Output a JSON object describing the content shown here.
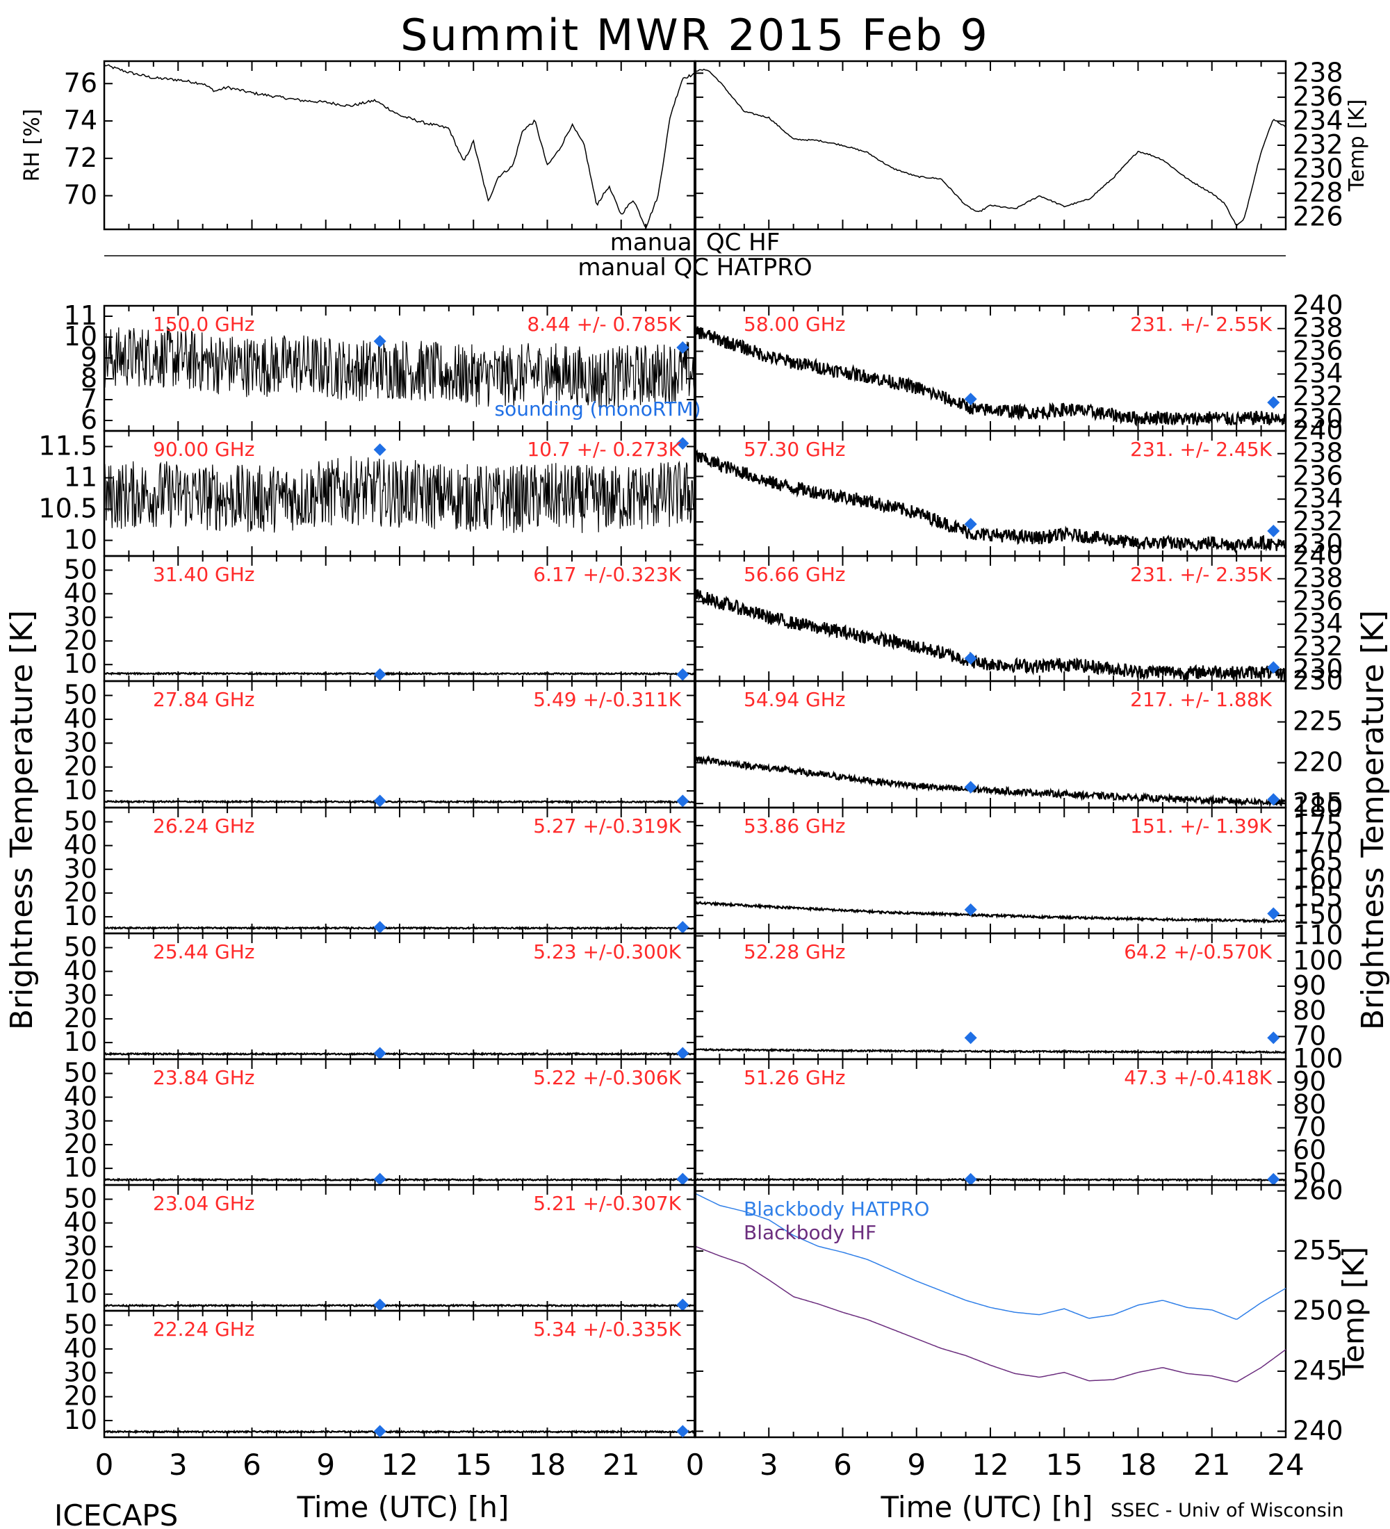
{
  "title": "Summit MWR 2015 Feb  9",
  "footer": {
    "left": "ICECAPS",
    "right": "SSEC - Univ of Wisconsin"
  },
  "xlabel": "Time (UTC) [h]",
  "ylabel_center": "Brightness Temperature [K]",
  "colors": {
    "data": "#000000",
    "label": "#ff2a2a",
    "sounding": "#1f6fe5",
    "bb_hatpro": "#2f7fe8",
    "bb_hf": "#6b2d7e"
  },
  "qc": {
    "hf": "manual QC HF",
    "hatpro": "manual QC HATPRO"
  },
  "chart_data": [
    {
      "id": "rh",
      "type": "line",
      "ylabel": "RH [%]",
      "ylim": [
        68.2,
        77.2
      ],
      "yticks": [
        70,
        72,
        74,
        76
      ],
      "xlim": [
        0,
        24
      ],
      "x": [
        0,
        1,
        2,
        3,
        4,
        4.5,
        5,
        6,
        7,
        8,
        9,
        10,
        11,
        12,
        13,
        14,
        14.6,
        15,
        15.6,
        16,
        16.6,
        17,
        17.5,
        18,
        18.5,
        19,
        19.5,
        20,
        20.5,
        21,
        21.5,
        22,
        22.5,
        23,
        23.5,
        24
      ],
      "y": [
        77.0,
        76.6,
        76.3,
        76.2,
        76.0,
        75.6,
        75.8,
        75.5,
        75.3,
        75.1,
        75.0,
        74.8,
        75.1,
        74.3,
        73.9,
        73.6,
        71.8,
        72.9,
        69.7,
        71.0,
        71.6,
        73.5,
        74.0,
        71.6,
        72.5,
        73.8,
        72.7,
        69.5,
        70.5,
        69.0,
        69.8,
        68.3,
        70.0,
        74.3,
        76.3,
        76.5
      ]
    },
    {
      "id": "temp",
      "type": "line",
      "ylabel": "Temp [K]",
      "ylim": [
        225.0,
        239.0
      ],
      "yticks": [
        226,
        228,
        230,
        232,
        234,
        236,
        238
      ],
      "xlim": [
        0,
        24
      ],
      "x": [
        0,
        0.5,
        1,
        2,
        3,
        4,
        5,
        6,
        7,
        8,
        9,
        10,
        11,
        11.5,
        12,
        13,
        14,
        15,
        16,
        17,
        18,
        18.5,
        19,
        20,
        21,
        21.5,
        22,
        22.3,
        23,
        23.5,
        24
      ],
      "y": [
        238.2,
        238.3,
        237.3,
        234.8,
        234.3,
        232.5,
        232.4,
        232.0,
        231.4,
        230.1,
        229.4,
        229.2,
        227.0,
        226.4,
        227.0,
        226.7,
        227.8,
        226.9,
        227.5,
        229.3,
        231.5,
        231.2,
        230.8,
        229.2,
        228.0,
        227.2,
        225.3,
        225.8,
        231.5,
        234.2,
        233.5
      ]
    },
    {
      "id": "150",
      "type": "line",
      "label": "150.0 GHz",
      "stat": "8.44 +/- 0.785K",
      "ylim": [
        5.5,
        11.5
      ],
      "yticks": [
        6,
        7,
        8,
        9,
        10,
        11
      ],
      "xlim": [
        0,
        24
      ],
      "x": [
        0,
        2,
        4,
        6,
        8,
        10,
        12,
        14,
        16,
        18,
        20,
        22,
        24
      ],
      "y": [
        9.0,
        9.1,
        8.8,
        8.6,
        8.7,
        8.4,
        8.5,
        8.2,
        8.1,
        8.3,
        8.0,
        8.2,
        8.4
      ],
      "spread": 1.5,
      "sounding": {
        "name": "sounding (monoRTM)",
        "x": [
          11.2,
          23.5
        ],
        "y": [
          9.8,
          9.5
        ]
      }
    },
    {
      "id": "90",
      "type": "line",
      "label": "90.00 GHz",
      "stat": "10.7 +/- 0.273K",
      "ylim": [
        9.75,
        11.75
      ],
      "yticks": [
        10.0,
        10.5,
        11.0,
        11.5
      ],
      "xlim": [
        0,
        24
      ],
      "x": [
        0,
        2,
        4,
        6,
        8,
        10,
        12,
        14,
        16,
        18,
        20,
        22,
        24
      ],
      "y": [
        10.7,
        10.75,
        10.7,
        10.65,
        10.7,
        10.8,
        10.75,
        10.7,
        10.65,
        10.7,
        10.65,
        10.7,
        10.75
      ],
      "spread": 0.55,
      "sounding": {
        "x": [
          11.2,
          23.5
        ],
        "y": [
          11.45,
          11.55
        ]
      }
    },
    {
      "id": "31.40",
      "type": "line",
      "label": "31.40 GHz",
      "stat": "6.17 +/-0.323K",
      "ylim": [
        3,
        56
      ],
      "yticks": [
        10,
        20,
        30,
        40,
        50
      ],
      "xlim": [
        0,
        24
      ],
      "x": [
        0,
        24
      ],
      "y": [
        6.2,
        6.1
      ],
      "spread": 0.3,
      "sounding": {
        "x": [
          11.2,
          23.5
        ],
        "y": [
          5.8,
          5.8
        ]
      }
    },
    {
      "id": "27.84",
      "type": "line",
      "label": "27.84 GHz",
      "stat": "5.49 +/-0.311K",
      "ylim": [
        3,
        56
      ],
      "yticks": [
        10,
        20,
        30,
        40,
        50
      ],
      "xlim": [
        0,
        24
      ],
      "x": [
        0,
        24
      ],
      "y": [
        5.5,
        5.4
      ],
      "spread": 0.3,
      "sounding": {
        "x": [
          11.2,
          23.5
        ],
        "y": [
          5.8,
          5.8
        ]
      }
    },
    {
      "id": "26.24",
      "type": "line",
      "label": "26.24 GHz",
      "stat": "5.27 +/-0.319K",
      "ylim": [
        3,
        56
      ],
      "yticks": [
        10,
        20,
        30,
        40,
        50
      ],
      "xlim": [
        0,
        24
      ],
      "x": [
        0,
        24
      ],
      "y": [
        5.3,
        5.2
      ],
      "spread": 0.3,
      "sounding": {
        "x": [
          11.2,
          23.5
        ],
        "y": [
          5.6,
          5.6
        ]
      }
    },
    {
      "id": "25.44",
      "type": "line",
      "label": "25.44 GHz",
      "stat": "5.23 +/-0.300K",
      "ylim": [
        3,
        56
      ],
      "yticks": [
        10,
        20,
        30,
        40,
        50
      ],
      "xlim": [
        0,
        24
      ],
      "x": [
        0,
        24
      ],
      "y": [
        5.2,
        5.2
      ],
      "spread": 0.3,
      "sounding": {
        "x": [
          11.2,
          23.5
        ],
        "y": [
          5.5,
          5.5
        ]
      }
    },
    {
      "id": "23.84",
      "type": "line",
      "label": "23.84 GHz",
      "stat": "5.22 +/-0.306K",
      "ylim": [
        3,
        56
      ],
      "yticks": [
        10,
        20,
        30,
        40,
        50
      ],
      "xlim": [
        0,
        24
      ],
      "x": [
        0,
        24
      ],
      "y": [
        5.2,
        5.2
      ],
      "spread": 0.3,
      "sounding": {
        "x": [
          11.2,
          23.5
        ],
        "y": [
          5.5,
          5.5
        ]
      }
    },
    {
      "id": "23.04",
      "type": "line",
      "label": "23.04 GHz",
      "stat": "5.21 +/-0.307K",
      "ylim": [
        3,
        56
      ],
      "yticks": [
        10,
        20,
        30,
        40,
        50
      ],
      "xlim": [
        0,
        24
      ],
      "x": [
        0,
        24
      ],
      "y": [
        5.2,
        5.2
      ],
      "spread": 0.3,
      "sounding": {
        "x": [
          11.2,
          23.5
        ],
        "y": [
          5.5,
          5.5
        ]
      }
    },
    {
      "id": "22.24",
      "type": "line",
      "label": "22.24 GHz",
      "stat": "5.34 +/-0.335K",
      "ylim": [
        3,
        56
      ],
      "yticks": [
        10,
        20,
        30,
        40,
        50
      ],
      "xlim": [
        0,
        24
      ],
      "x": [
        0,
        24
      ],
      "y": [
        5.3,
        5.3
      ],
      "spread": 0.3,
      "sounding": {
        "x": [
          11.2,
          23.5
        ],
        "y": [
          5.5,
          5.5
        ]
      }
    },
    {
      "id": "58.00",
      "type": "line",
      "label": "58.00 GHz",
      "stat": "231. +/- 2.55K",
      "ylim": [
        229,
        240
      ],
      "yticks": [
        230,
        232,
        234,
        236,
        238,
        240
      ],
      "xlim": [
        0,
        24
      ],
      "x": [
        0,
        1,
        2,
        3,
        4,
        5,
        6,
        7,
        8,
        9,
        10,
        11,
        11.5,
        12,
        13,
        14,
        15,
        16,
        17,
        18,
        19,
        20,
        21,
        22,
        23,
        24
      ],
      "y": [
        237.8,
        237.0,
        236.3,
        235.5,
        235.0,
        234.6,
        234.2,
        233.8,
        233.3,
        232.8,
        232.0,
        231.2,
        230.8,
        230.9,
        230.7,
        230.6,
        230.9,
        230.7,
        230.4,
        230.1,
        230.2,
        230.0,
        230.2,
        230.0,
        230.2,
        229.9
      ],
      "spread": 0.6,
      "sounding": {
        "x": [
          11.2,
          23.5
        ],
        "y": [
          231.8,
          231.5
        ]
      }
    },
    {
      "id": "57.30",
      "type": "line",
      "label": "57.30 GHz",
      "stat": "231. +/- 2.45K",
      "ylim": [
        229,
        240
      ],
      "yticks": [
        230,
        232,
        234,
        236,
        238,
        240
      ],
      "xlim": [
        0,
        24
      ],
      "x": [
        0,
        1,
        2,
        3,
        4,
        5,
        6,
        7,
        8,
        9,
        10,
        11,
        11.5,
        12,
        13,
        14,
        15,
        16,
        17,
        18,
        19,
        20,
        21,
        22,
        23,
        24
      ],
      "y": [
        237.8,
        237.0,
        236.3,
        235.5,
        235.0,
        234.6,
        234.2,
        233.8,
        233.3,
        232.8,
        232.0,
        231.2,
        230.8,
        230.9,
        230.7,
        230.6,
        230.9,
        230.7,
        230.4,
        230.1,
        230.2,
        230.0,
        230.2,
        230.0,
        230.2,
        229.9
      ],
      "spread": 0.6,
      "sounding": {
        "x": [
          11.2,
          23.5
        ],
        "y": [
          231.8,
          231.2
        ]
      }
    },
    {
      "id": "56.66",
      "type": "line",
      "label": "56.66 GHz",
      "stat": "231. +/- 2.35K",
      "ylim": [
        229,
        240
      ],
      "yticks": [
        230,
        232,
        234,
        236,
        238,
        240
      ],
      "xlim": [
        0,
        24
      ],
      "x": [
        0,
        1,
        2,
        3,
        4,
        5,
        6,
        7,
        8,
        9,
        10,
        11,
        11.5,
        12,
        13,
        14,
        15,
        16,
        17,
        18,
        19,
        20,
        21,
        22,
        23,
        24
      ],
      "y": [
        236.6,
        235.9,
        235.3,
        234.6,
        234.1,
        233.7,
        233.3,
        232.9,
        232.5,
        232.0,
        231.5,
        230.9,
        230.6,
        230.5,
        230.4,
        230.3,
        230.5,
        230.3,
        230.1,
        229.8,
        229.9,
        229.7,
        229.9,
        229.7,
        229.8,
        229.6
      ],
      "spread": 0.6,
      "sounding": {
        "x": [
          11.2,
          23.5
        ],
        "y": [
          231.0,
          230.2
        ]
      }
    },
    {
      "id": "54.94",
      "type": "line",
      "label": "54.94 GHz",
      "stat": "217. +/- 1.88K",
      "ylim": [
        214.5,
        230
      ],
      "yticks": [
        215,
        220,
        225,
        230
      ],
      "xlim": [
        0,
        24
      ],
      "x": [
        0,
        2,
        4,
        6,
        8,
        10,
        12,
        14,
        16,
        18,
        20,
        22,
        24
      ],
      "y": [
        220.5,
        219.7,
        219.0,
        218.2,
        217.5,
        216.9,
        216.6,
        216.3,
        216.0,
        215.7,
        215.5,
        215.3,
        215.1
      ],
      "spread": 0.4,
      "sounding": {
        "x": [
          11.2,
          23.5
        ],
        "y": [
          217.0,
          215.5
        ]
      }
    },
    {
      "id": "53.86",
      "type": "line",
      "label": "53.86 GHz",
      "stat": "151. +/- 1.39K",
      "ylim": [
        145,
        180
      ],
      "yticks": [
        150,
        155,
        160,
        165,
        170,
        175,
        180
      ],
      "xlim": [
        0,
        24
      ],
      "x": [
        0,
        2,
        4,
        6,
        8,
        10,
        12,
        14,
        16,
        18,
        20,
        22,
        24
      ],
      "y": [
        153.5,
        152.8,
        152.1,
        151.4,
        150.8,
        150.4,
        150.0,
        149.6,
        149.3,
        149.0,
        148.8,
        148.6,
        148.4
      ],
      "spread": 0.3,
      "sounding": {
        "x": [
          11.2,
          23.5
        ],
        "y": [
          151.6,
          150.5
        ]
      }
    },
    {
      "id": "52.28",
      "type": "line",
      "label": "52.28 GHz",
      "stat": "64.2 +/-0.570K",
      "ylim": [
        61,
        111
      ],
      "yticks": [
        70,
        80,
        90,
        100,
        110
      ],
      "xlim": [
        0,
        24
      ],
      "x": [
        0,
        6,
        12,
        18,
        24
      ],
      "y": [
        64.8,
        64.4,
        64.1,
        63.9,
        63.8
      ],
      "spread": 0.3,
      "sounding": {
        "x": [
          11.2,
          23.5
        ],
        "y": [
          69.5,
          69.5
        ]
      }
    },
    {
      "id": "51.26",
      "type": "line",
      "label": "51.26 GHz",
      "stat": "47.3 +/-0.418K",
      "ylim": [
        45,
        100
      ],
      "yticks": [
        50,
        60,
        70,
        80,
        90,
        100
      ],
      "xlim": [
        0,
        24
      ],
      "x": [
        0,
        24
      ],
      "y": [
        47.4,
        47.2
      ],
      "spread": 0.3,
      "sounding": {
        "x": [
          11.2,
          23.5
        ],
        "y": [
          47.5,
          47.5
        ]
      }
    },
    {
      "id": "blackbody",
      "type": "line",
      "ylabel": "Temp [K]",
      "ylim": [
        239.5,
        260.5
      ],
      "yticks": [
        240,
        245,
        250,
        255,
        260
      ],
      "xlim": [
        0,
        24
      ],
      "series": [
        {
          "name": "Blackbody HATPRO",
          "x": [
            0,
            1,
            2,
            3,
            4,
            5,
            6,
            7,
            8,
            9,
            10,
            11,
            12,
            13,
            14,
            15,
            16,
            17,
            18,
            19,
            20,
            21,
            22,
            23,
            24
          ],
          "y": [
            259.8,
            258.8,
            258.3,
            257.6,
            256.3,
            255.4,
            254.9,
            254.3,
            253.4,
            252.5,
            251.7,
            250.9,
            250.3,
            249.9,
            249.7,
            250.2,
            249.4,
            249.7,
            250.5,
            250.9,
            250.3,
            250.1,
            249.3,
            250.7,
            251.9
          ]
        },
        {
          "name": "Blackbody HF",
          "x": [
            0,
            1,
            2,
            3,
            4,
            5,
            6,
            7,
            8,
            9,
            10,
            11,
            12,
            13,
            14,
            15,
            16,
            17,
            18,
            19,
            20,
            21,
            22,
            23,
            24
          ],
          "y": [
            255.4,
            254.6,
            253.9,
            252.6,
            251.2,
            250.6,
            249.9,
            249.3,
            248.5,
            247.7,
            246.9,
            246.3,
            245.5,
            244.8,
            244.5,
            244.9,
            244.2,
            244.3,
            244.9,
            245.3,
            244.8,
            244.6,
            244.1,
            245.3,
            246.8
          ]
        }
      ]
    }
  ],
  "xticks": [
    0,
    3,
    6,
    9,
    12,
    15,
    18,
    21,
    24
  ]
}
